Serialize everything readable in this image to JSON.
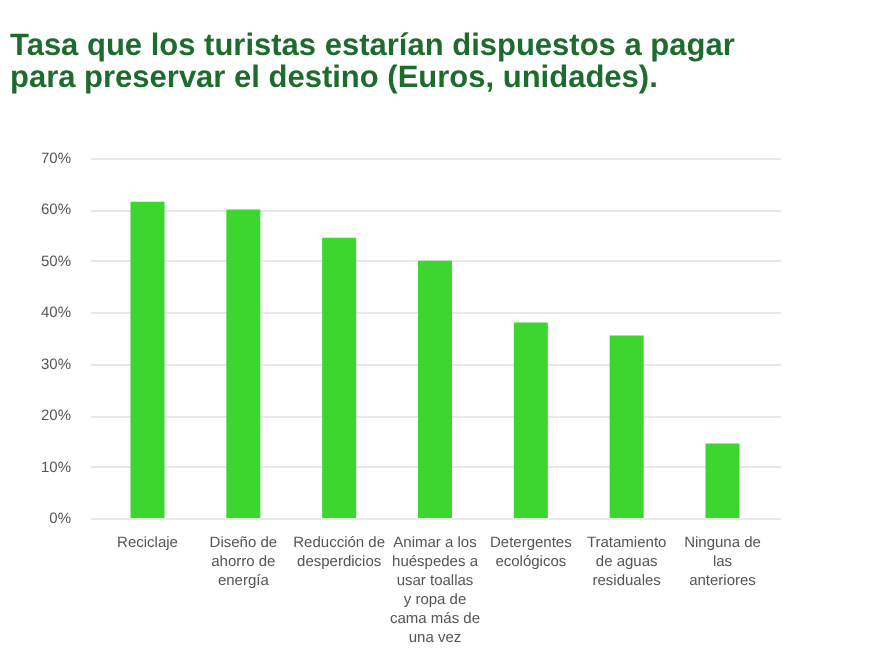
{
  "chart_data": {
    "type": "bar",
    "title": "Tasa que los turistas estarían dispuestos a pagar para preservar el destino (Euros, unidades).",
    "categories": [
      "Reciclaje",
      "Diseño de ahorro de energía",
      "Reducción de desperdicios",
      "Animar a los huéspedes a usar toallas y ropa de cama más de una vez",
      "Detergentes ecológicos",
      "Tratamiento de aguas residuales",
      "Ninguna de las anteriores"
    ],
    "values": [
      61.5,
      60,
      54.5,
      50,
      38,
      35.5,
      14.5
    ],
    "color": "#3dd62e",
    "ylim": [
      0,
      70
    ],
    "yticks": [
      {
        "value": 0,
        "label": "0%"
      },
      {
        "value": 10,
        "label": "10%"
      },
      {
        "value": 20,
        "label": "20%"
      },
      {
        "value": 30,
        "label": "30%"
      },
      {
        "value": 40,
        "label": "40%"
      },
      {
        "value": 50,
        "label": "50%"
      },
      {
        "value": 60,
        "label": "60%"
      },
      {
        "value": 70,
        "label": "70%"
      }
    ],
    "grid": "y"
  }
}
